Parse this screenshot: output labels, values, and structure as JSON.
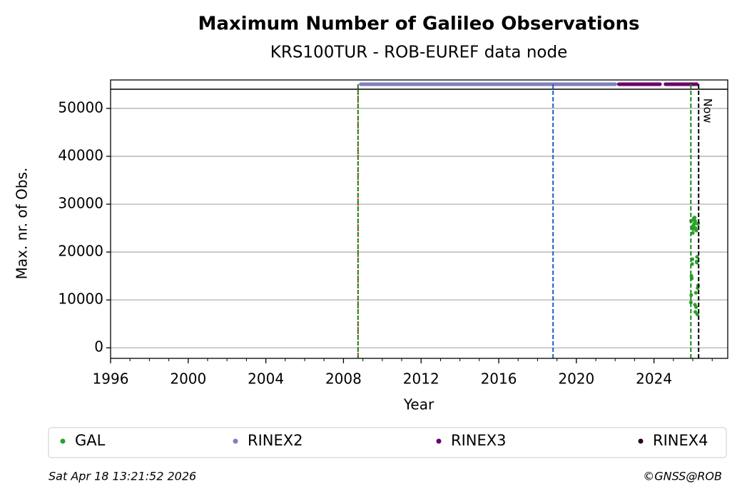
{
  "chart_data": {
    "type": "scatter",
    "title": "Maximum Number of Galileo Observations",
    "subtitle": "KRS100TUR - ROB-EUREF data node",
    "xlabel": "Year",
    "ylabel": "Max. nr. of Obs.",
    "xlim": [
      1996,
      2027.8
    ],
    "ylim": [
      -2200,
      54000
    ],
    "xticks": [
      1996,
      2000,
      2004,
      2008,
      2012,
      2016,
      2020,
      2024
    ],
    "xminorticks": [
      1997,
      1998,
      1999,
      2001,
      2002,
      2003,
      2005,
      2006,
      2007,
      2009,
      2010,
      2011,
      2013,
      2014,
      2015,
      2017,
      2018,
      2019,
      2021,
      2022,
      2023,
      2025,
      2026,
      2027
    ],
    "yticks": [
      0,
      10000,
      20000,
      30000,
      40000,
      50000
    ],
    "grid": true,
    "series": [
      {
        "name": "GAL",
        "color": "#2ca02c",
        "x": [
          2025.9,
          2025.92,
          2025.95,
          2025.97,
          2026.0,
          2026.02,
          2026.05,
          2026.08,
          2026.1,
          2026.12,
          2026.15,
          2026.18,
          2026.2,
          2026.22,
          2026.25,
          2026.27,
          2025.93,
          2025.98,
          2026.03,
          2026.07,
          2026.13,
          2026.17,
          2026.23,
          2026.28,
          2025.91,
          2025.96,
          2026.01,
          2026.06,
          2026.11,
          2026.16,
          2026.21,
          2026.26
        ],
        "values": [
          9500,
          11000,
          14500,
          17500,
          24000,
          25500,
          27000,
          26000,
          27200,
          26500,
          25000,
          24500,
          18000,
          19000,
          12500,
          13000,
          15000,
          18500,
          26800,
          25800,
          7500,
          8500,
          7000,
          26000,
          26500,
          25000,
          24800,
          27100,
          9000,
          11500,
          17800,
          25900
        ]
      },
      {
        "name": "RINEX2",
        "color": "#7f7fbf",
        "spans": [
          [
            2008.8,
            2022.1
          ]
        ]
      },
      {
        "name": "RINEX3",
        "color": "#6a006a",
        "spans": [
          [
            2022.1,
            2024.4
          ],
          [
            2024.5,
            2026.3
          ]
        ]
      },
      {
        "name": "RINEX4",
        "color": "#2b0025",
        "spans": []
      }
    ],
    "vlines": [
      {
        "x": 2008.75,
        "color": "#d62728",
        "dash": "2,2"
      },
      {
        "x": 2008.75,
        "color": "#1a8a1a",
        "dash": "6,3"
      },
      {
        "x": 2018.8,
        "color": "#1f5fbf",
        "dash": "6,3"
      },
      {
        "x": 2025.9,
        "color": "#1a8a1a",
        "dash": "6,3"
      },
      {
        "x": 2026.3,
        "color": "#000000",
        "dash": "6,3",
        "label": "Now"
      }
    ],
    "footer_left": "Sat Apr 18 13:21:52 2026",
    "footer_right": "©GNSS@ROB"
  }
}
